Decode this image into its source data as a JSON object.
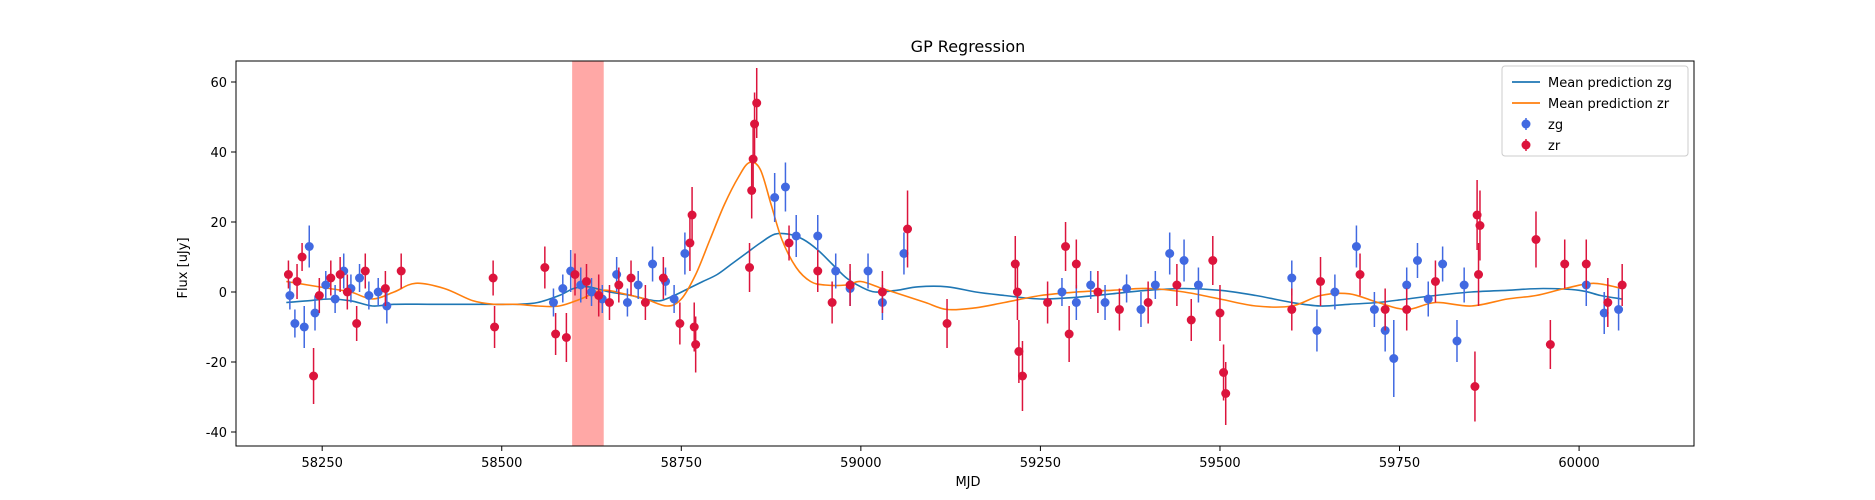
{
  "chart_data": {
    "type": "scatter",
    "title": "GP Regression",
    "xlabel": "MJD",
    "ylabel": "Flux [uJy]",
    "xlim": [
      58130,
      60160
    ],
    "ylim": [
      -44,
      66
    ],
    "xticks": [
      58250,
      58500,
      58750,
      59000,
      59250,
      59500,
      59750,
      60000
    ],
    "yticks": [
      -40,
      -20,
      0,
      20,
      40,
      60
    ],
    "legend_position": "top-right",
    "shaded_region": {
      "x0": 58598,
      "x1": 58642,
      "color": "#ff9f9c"
    },
    "series": [
      {
        "name": "Mean prediction zg",
        "kind": "line",
        "color": "#1f77b4",
        "x": [
          58200,
          58230,
          58260,
          58290,
          58320,
          58350,
          58400,
          58450,
          58490,
          58520,
          58550,
          58580,
          58600,
          58620,
          58650,
          58680,
          58700,
          58720,
          58740,
          58760,
          58780,
          58800,
          58820,
          58840,
          58860,
          58880,
          58900,
          58920,
          58940,
          58960,
          58980,
          59000,
          59020,
          59050,
          59080,
          59120,
          59160,
          59200,
          59250,
          59300,
          59350,
          59400,
          59450,
          59500,
          59550,
          59600,
          59640,
          59680,
          59720,
          59760,
          59800,
          59850,
          59900,
          59950,
          60000,
          60030,
          60060
        ],
        "y": [
          -3,
          -2.5,
          -2,
          -2.5,
          -4,
          -3.5,
          -3.5,
          -3.5,
          -3.5,
          -3.5,
          -3,
          -1,
          1,
          1.5,
          0,
          -1,
          -2,
          -2.5,
          -1,
          1,
          3,
          5,
          8,
          11,
          14,
          16.5,
          16.5,
          15,
          12,
          8,
          4,
          1.5,
          0,
          0.5,
          1.5,
          1.5,
          0,
          -1,
          -2,
          -1.5,
          -0.5,
          0.5,
          1,
          0.5,
          -1,
          -3,
          -4,
          -3.5,
          -3,
          -2,
          -1,
          0,
          0.5,
          1,
          0.5,
          -1,
          -2
        ]
      },
      {
        "name": "Mean prediction zr",
        "kind": "line",
        "color": "#ff7f0e",
        "x": [
          58200,
          58230,
          58260,
          58290,
          58320,
          58350,
          58380,
          58420,
          58460,
          58490,
          58520,
          58550,
          58580,
          58610,
          58640,
          58670,
          58700,
          58730,
          58750,
          58770,
          58790,
          58810,
          58830,
          58845,
          58860,
          58875,
          58890,
          58910,
          58930,
          58950,
          58980,
          59000,
          59030,
          59060,
          59090,
          59120,
          59160,
          59200,
          59250,
          59300,
          59350,
          59400,
          59450,
          59500,
          59550,
          59600,
          59640,
          59680,
          59720,
          59760,
          59800,
          59850,
          59900,
          59940,
          59980,
          60020,
          60060
        ],
        "y": [
          3,
          2,
          1,
          0,
          -2,
          0,
          2.5,
          1,
          -2.5,
          -3.5,
          -3.5,
          -4,
          -4,
          -2,
          0.5,
          -0.5,
          -2,
          -4,
          -2,
          5,
          15,
          25,
          33,
          37,
          35,
          25,
          15,
          7,
          3,
          2,
          2,
          3,
          1,
          -1,
          -3,
          -5,
          -4.5,
          -3,
          -1,
          0,
          0.5,
          1,
          0,
          -2,
          -4,
          -4,
          -1,
          -0.5,
          -3,
          -5,
          -3,
          -4,
          -2,
          -1,
          1,
          2.5,
          1
        ]
      },
      {
        "name": "zg",
        "kind": "errorbar",
        "color": "#4169e1",
        "x": [
          58205,
          58212,
          58225,
          58232,
          58240,
          58255,
          58268,
          58280,
          58290,
          58302,
          58315,
          58328,
          58340,
          58572,
          58585,
          58596,
          58610,
          58625,
          58640,
          58660,
          58675,
          58690,
          58710,
          58728,
          58740,
          58755,
          58880,
          58895,
          58910,
          58940,
          58965,
          58985,
          59010,
          59030,
          59060,
          59280,
          59300,
          59320,
          59340,
          59370,
          59390,
          59410,
          59430,
          59450,
          59470,
          59600,
          59635,
          59660,
          59690,
          59715,
          59730,
          59742,
          59760,
          59775,
          59790,
          59810,
          59830,
          59840,
          60010,
          60035,
          60055
        ],
        "y": [
          -1,
          -9,
          -10,
          13,
          -6,
          2,
          -2,
          6,
          1,
          4,
          -1,
          0,
          -4,
          -3,
          1,
          6,
          2,
          0,
          -2,
          5,
          -3,
          2,
          8,
          3,
          -2,
          11,
          27,
          30,
          16,
          16,
          6,
          1,
          6,
          -3,
          11,
          0,
          -3,
          2,
          -3,
          1,
          -5,
          2,
          11,
          9,
          2,
          4,
          -11,
          0,
          13,
          -5,
          -11,
          -19,
          2,
          9,
          -2,
          8,
          -14,
          2,
          2,
          -6,
          -5
        ],
        "yerr": [
          4,
          4,
          6,
          6,
          5,
          4,
          4,
          5,
          4,
          4,
          4,
          4,
          5,
          4,
          4,
          6,
          5,
          4,
          4,
          5,
          4,
          4,
          5,
          4,
          4,
          6,
          7,
          7,
          6,
          6,
          5,
          5,
          5,
          5,
          6,
          4,
          5,
          4,
          5,
          4,
          5,
          4,
          6,
          6,
          5,
          5,
          6,
          5,
          6,
          5,
          6,
          11,
          5,
          5,
          5,
          5,
          6,
          5,
          6,
          6,
          6
        ]
      },
      {
        "name": "zr",
        "kind": "errorbar",
        "color": "#dc143c",
        "x": [
          58203,
          58215,
          58222,
          58238,
          58246,
          58262,
          58275,
          58285,
          58298,
          58310,
          58338,
          58360,
          58488,
          58490,
          58560,
          58575,
          58590,
          58602,
          58618,
          58635,
          58650,
          58663,
          58680,
          58700,
          58725,
          58748,
          58762,
          58765,
          58768,
          58770,
          58845,
          58848,
          58850,
          58852,
          58855,
          58900,
          58940,
          58960,
          58985,
          59030,
          59065,
          59120,
          59215,
          59218,
          59220,
          59225,
          59260,
          59285,
          59290,
          59300,
          59330,
          59360,
          59400,
          59440,
          59460,
          59490,
          59500,
          59505,
          59508,
          59600,
          59640,
          59695,
          59730,
          59760,
          59800,
          59855,
          59858,
          59860,
          59862,
          59940,
          59960,
          59980,
          60010,
          60040,
          60060
        ],
        "y": [
          5,
          3,
          10,
          -24,
          -1,
          4,
          5,
          0,
          -9,
          6,
          1,
          6,
          4,
          -10,
          7,
          -12,
          -13,
          5,
          3,
          -1,
          -3,
          2,
          4,
          -3,
          4,
          -9,
          14,
          22,
          -10,
          -15,
          7,
          29,
          38,
          48,
          54,
          14,
          6,
          -3,
          2,
          0,
          18,
          -9,
          8,
          0,
          -17,
          -24,
          -3,
          13,
          -12,
          8,
          0,
          -5,
          -3,
          2,
          -8,
          9,
          -6,
          -23,
          -29,
          -5,
          3,
          5,
          -5,
          -5,
          3,
          -27,
          22,
          5,
          19,
          15,
          -15,
          8,
          8,
          -3,
          2
        ],
        "yerr": [
          4,
          5,
          4,
          8,
          5,
          5,
          5,
          5,
          5,
          5,
          5,
          5,
          5,
          6,
          6,
          6,
          7,
          6,
          5,
          6,
          5,
          5,
          5,
          5,
          6,
          6,
          8,
          8,
          7,
          8,
          7,
          8,
          9,
          9,
          10,
          5,
          6,
          6,
          6,
          6,
          11,
          7,
          8,
          8,
          9,
          10,
          6,
          7,
          8,
          7,
          6,
          6,
          6,
          6,
          6,
          7,
          8,
          8,
          9,
          6,
          7,
          6,
          6,
          6,
          6,
          10,
          10,
          9,
          10,
          8,
          7,
          7,
          7,
          7,
          6
        ]
      }
    ]
  }
}
